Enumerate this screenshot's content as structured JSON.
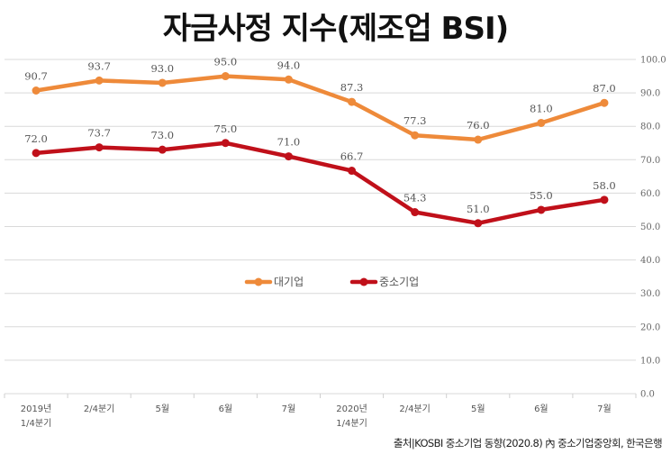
{
  "title": "자금사정 지수(제조업 BSI)",
  "source": "출처|KOSBI 중소기업 동향(2020.8) 內 중소기업중앙회, 한국은행",
  "colors": {
    "large": "#ee8a3a",
    "sme": "#c0101a",
    "grid": "#d9d9d9"
  },
  "chart_data": {
    "type": "line",
    "title": "자금사정 지수(제조업 BSI)",
    "categories": [
      [
        "2019년",
        "1/4분기"
      ],
      [
        "2/4분기"
      ],
      [
        "5월"
      ],
      [
        "6월"
      ],
      [
        "7월"
      ],
      [
        "2020년",
        "1/4분기"
      ],
      [
        "2/4분기"
      ],
      [
        "5월"
      ],
      [
        "6월"
      ],
      [
        "7월"
      ]
    ],
    "series": [
      {
        "name": "대기업",
        "values": [
          90.7,
          93.7,
          93.0,
          95.0,
          94.0,
          87.3,
          77.3,
          76.0,
          81.0,
          87.0
        ],
        "labels": [
          "90.7",
          "93.7",
          "93.0",
          "95.0",
          "94.0",
          "87.3",
          "77.3",
          "76.0",
          "81.0",
          "87.0"
        ]
      },
      {
        "name": "중소기업",
        "values": [
          72.0,
          73.7,
          73.0,
          75.0,
          71.0,
          66.7,
          54.3,
          51.0,
          55.0,
          58.0
        ],
        "labels": [
          "72.0",
          "73.7",
          "73.0",
          "75.0",
          "71.0",
          "66.7",
          "54.3",
          "51.0",
          "55.0",
          "58.0"
        ]
      }
    ],
    "yticks": [
      "0.0",
      "10.0",
      "20.0",
      "30.0",
      "40.0",
      "50.0",
      "60.0",
      "70.0",
      "80.0",
      "90.0",
      "100.0"
    ],
    "ylim": [
      0,
      100
    ],
    "grid": true,
    "legend": "center"
  }
}
